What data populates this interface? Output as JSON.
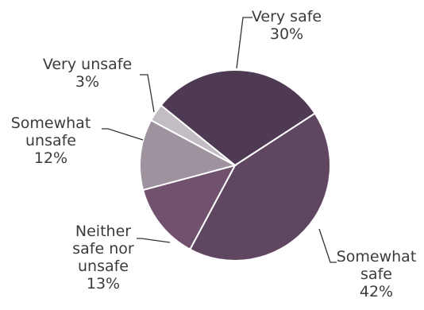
{
  "chart_data": {
    "type": "pie",
    "title": "",
    "slices": [
      {
        "label_lines": [
          "Very safe"
        ],
        "value": 30,
        "value_label": "30%",
        "color": "#4f3a53"
      },
      {
        "label_lines": [
          "Somewhat",
          "safe"
        ],
        "value": 42,
        "value_label": "42%",
        "color": "#5f4762"
      },
      {
        "label_lines": [
          "Neither",
          "safe nor",
          "unsafe"
        ],
        "value": 13,
        "value_label": "13%",
        "color": "#70526f"
      },
      {
        "label_lines": [
          "Somewhat",
          "unsafe"
        ],
        "value": 12,
        "value_label": "12%",
        "color": "#9f929f"
      },
      {
        "label_lines": [
          "Very unsafe"
        ],
        "value": 3,
        "value_label": "3%",
        "color": "#c3bcc4"
      }
    ]
  }
}
